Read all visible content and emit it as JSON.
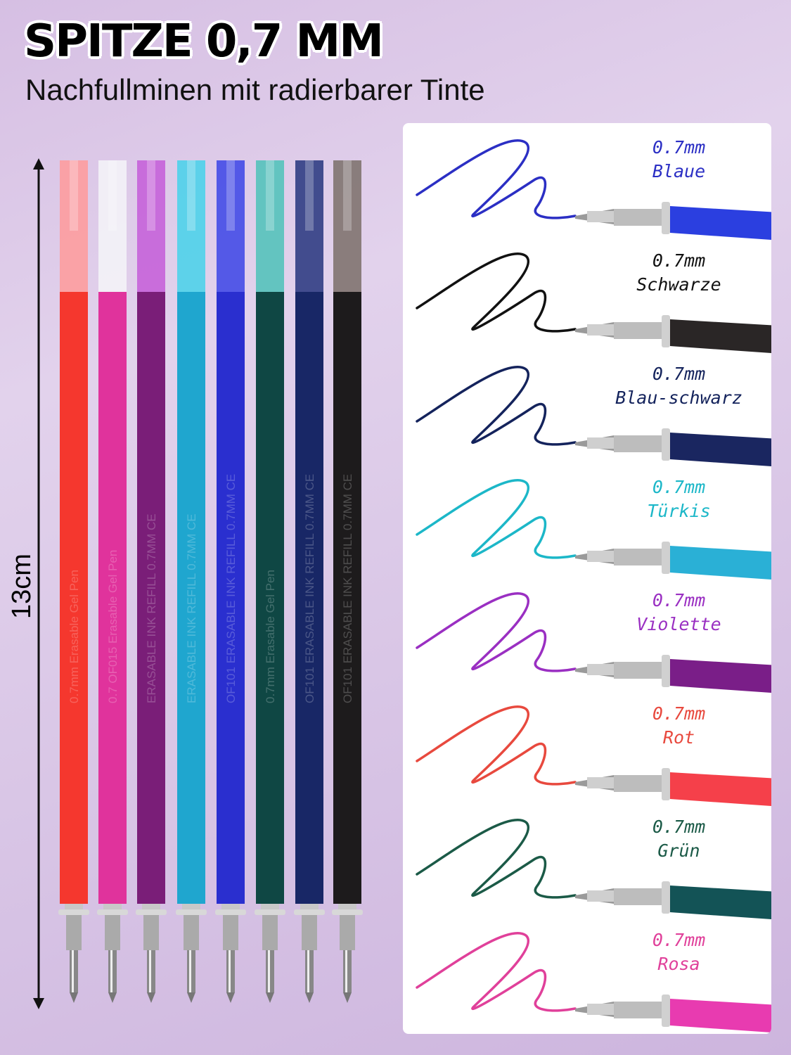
{
  "header": {
    "title": "SPITZE 0,7 MM",
    "subtitle": "Nachfullminen mit radierbarer Tinte"
  },
  "dimension": {
    "label": "13cm"
  },
  "refills": [
    {
      "color": "#f5372e",
      "cap": "#ff9a9a",
      "imprint": "0.7mm Erasable Gel Pen"
    },
    {
      "color": "#e0339c",
      "cap": "#f4f4f8",
      "imprint": "0.7 OF015 Erasable Gel Pen"
    },
    {
      "color": "#7a1e78",
      "cap": "#c45cd8",
      "imprint": "ERASABLE INK REFILL 0.7MM CE"
    },
    {
      "color": "#1fa6cf",
      "cap": "#45d2ea",
      "imprint": "ERASABLE INK REFILL 0.7MM CE"
    },
    {
      "color": "#2a2fcf",
      "cap": "#3b44e6",
      "imprint": "OF101 ERASABLE INK REFILL 0.7MM CE"
    },
    {
      "color": "#0f4744",
      "cap": "#4cc2b8",
      "imprint": "0.7mm Erasable Gel Pen"
    },
    {
      "color": "#182766",
      "cap": "#26357e",
      "imprint": "OF101 ERASABLE INK REFILL 0.7MM CE"
    },
    {
      "color": "#1d1b1c",
      "cap": "#7a6f68",
      "imprint": "OF101 ERASABLE INK REFILL 0.7MM CE"
    }
  ],
  "samples": [
    {
      "size": "0.7mm",
      "name": "Blaue",
      "color": "#2b2fc4",
      "barrel": "#2b3fe0"
    },
    {
      "size": "0.7mm",
      "name": "Schwarze",
      "color": "#111111",
      "barrel": "#2a2626"
    },
    {
      "size": "0.7mm",
      "name": "Blau-schwarz",
      "color": "#14235c",
      "barrel": "#1a2660"
    },
    {
      "size": "0.7mm",
      "name": "Türkis",
      "color": "#1cb7c8",
      "barrel": "#2ab0d6"
    },
    {
      "size": "0.7mm",
      "name": "Violette",
      "color": "#9a2fc2",
      "barrel": "#7a1e88"
    },
    {
      "size": "0.7mm",
      "name": "Rot",
      "color": "#e8493e",
      "barrel": "#f5404a"
    },
    {
      "size": "0.7mm",
      "name": "Grün",
      "color": "#1b5a47",
      "barrel": "#135356"
    },
    {
      "size": "0.7mm",
      "name": "Rosa",
      "color": "#e0409a",
      "barrel": "#e83bb0"
    }
  ]
}
